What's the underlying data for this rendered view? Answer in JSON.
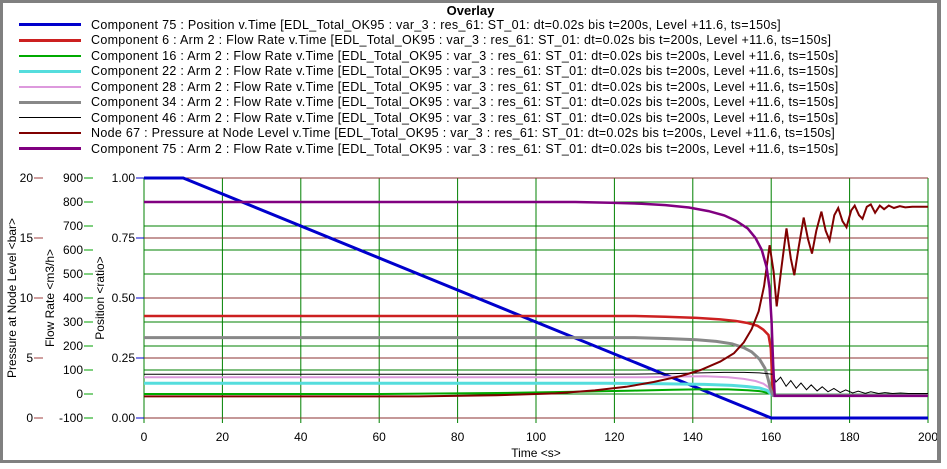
{
  "window": {
    "border_color": "#808080",
    "background": "#FFFFFF"
  },
  "legend": {
    "items": [
      {
        "label": "Component 75 : Position v.Time [EDL_Total_OK95 : var_3 : res_61: ST_01: dt=0.02s bis t=200s, Level +11.6, ts=150s]"
      },
      {
        "label": "Component 6 : Arm 2 : Flow Rate v.Time [EDL_Total_OK95 : var_3 : res_61: ST_01: dt=0.02s bis t=200s, Level +11.6, ts=150s]"
      },
      {
        "label": "Component 16 : Arm 2 : Flow Rate v.Time [EDL_Total_OK95 : var_3 : res_61: ST_01: dt=0.02s bis t=200s, Level +11.6, ts=150s]"
      },
      {
        "label": "Component 22 : Arm 2 : Flow Rate v.Time [EDL_Total_OK95 : var_3 : res_61: ST_01: dt=0.02s bis t=200s, Level +11.6, ts=150s]"
      },
      {
        "label": "Component 28 : Arm 2 : Flow Rate v.Time [EDL_Total_OK95 : var_3 : res_61: ST_01: dt=0.02s bis t=200s, Level +11.6, ts=150s]"
      },
      {
        "label": "Component 34 : Arm 2 : Flow Rate v.Time [EDL_Total_OK95 : var_3 : res_61: ST_01: dt=0.02s bis t=200s, Level +11.6, ts=150s]"
      },
      {
        "label": "Component 46 : Arm 2 : Flow Rate v.Time [EDL_Total_OK95 : var_3 : res_61: ST_01: dt=0.02s bis t=200s, Level +11.6, ts=150s]"
      },
      {
        "label": "Node 67 : Pressure at Node Level v.Time [EDL_Total_OK95 : var_3 : res_61: ST_01: dt=0.02s bis t=200s, Level +11.6, ts=150s]"
      },
      {
        "label": "Component 75 : Arm 2 : Flow Rate v.Time [EDL_Total_OK95 : var_3 : res_61: ST_01: dt=0.02s bis t=200s, Level +11.6, ts=150s]"
      }
    ]
  },
  "chart_data": {
    "type": "line",
    "title": "Overlay",
    "grid": {
      "vertical_color": "#008000",
      "flow_line_color": "#008000",
      "pressure_line_color": "#8B3232"
    },
    "x_axis": {
      "label": "Time <s>",
      "range": [
        0,
        200
      ],
      "tick_values": [
        0,
        20,
        40,
        60,
        80,
        100,
        120,
        140,
        160,
        180,
        200
      ],
      "tick_labels": [
        "0",
        "20",
        "40",
        "60",
        "80",
        "100",
        "120",
        "140",
        "160",
        "180",
        "200"
      ]
    },
    "y_axes": [
      {
        "id": "pressure",
        "label": "Pressure at Node Level <bar>",
        "range": [
          0,
          20
        ],
        "tick_values": [
          20,
          15,
          10,
          5,
          0
        ],
        "tick_labels": [
          "20",
          "15",
          "10",
          "5",
          "0"
        ],
        "tick_color": "#A04040"
      },
      {
        "id": "flow",
        "label": "Flow Rate <m3/h>",
        "range": [
          -100,
          900
        ],
        "tick_values": [
          900,
          800,
          700,
          600,
          500,
          400,
          300,
          200,
          100,
          0,
          -100
        ],
        "tick_labels": [
          "900",
          "800",
          "700",
          "600",
          "500",
          "400",
          "300",
          "200",
          "100",
          "0",
          "-100"
        ],
        "tick_color": "#00A000"
      },
      {
        "id": "position",
        "label": "Position <ratio>",
        "range": [
          0,
          1
        ],
        "tick_values": [
          1,
          0.75,
          0.5,
          0.25,
          0
        ],
        "tick_labels": [
          "1.00",
          "0.75",
          "0.50",
          "0.25",
          "0.00"
        ],
        "tick_color": "#0000CC"
      }
    ],
    "series": [
      {
        "name": "Component 75 : Position",
        "axis": "position",
        "color": "#0000CC",
        "width": 3,
        "points": [
          [
            0,
            1.0
          ],
          [
            10,
            1.0
          ],
          [
            160,
            0.0
          ],
          [
            200,
            0.0
          ]
        ]
      },
      {
        "name": "Component 6 : Arm 2 : Flow Rate",
        "axis": "flow",
        "color": "#CC2020",
        "width": 2.5,
        "points": [
          [
            0,
            325
          ],
          [
            125,
            325
          ],
          [
            133,
            322
          ],
          [
            141,
            317
          ],
          [
            147,
            311
          ],
          [
            151,
            304
          ],
          [
            154,
            296
          ],
          [
            156.5,
            284
          ],
          [
            158,
            268
          ],
          [
            159.3,
            246
          ],
          [
            159.9,
            190
          ],
          [
            160.3,
            40
          ],
          [
            160.6,
            -5
          ],
          [
            200,
            -5
          ]
        ]
      },
      {
        "name": "Component 16 : Arm 2 : Flow Rate",
        "axis": "flow",
        "color": "#00AA00",
        "width": 2,
        "points": [
          [
            0,
            0
          ],
          [
            60,
            0
          ],
          [
            90,
            4
          ],
          [
            110,
            9
          ],
          [
            125,
            14
          ],
          [
            135,
            18
          ],
          [
            143,
            20
          ],
          [
            149,
            19
          ],
          [
            154,
            16
          ],
          [
            157,
            12
          ],
          [
            159,
            6
          ],
          [
            160.4,
            -3
          ],
          [
            200,
            -3
          ]
        ]
      },
      {
        "name": "Component 22 : Arm 2 : Flow Rate",
        "axis": "flow",
        "color": "#55DDDD",
        "width": 3,
        "points": [
          [
            0,
            45
          ],
          [
            118,
            45
          ],
          [
            132,
            43
          ],
          [
            143,
            40
          ],
          [
            150,
            36
          ],
          [
            154,
            31
          ],
          [
            157,
            25
          ],
          [
            159,
            15
          ],
          [
            160.3,
            -6
          ],
          [
            200,
            -6
          ]
        ]
      },
      {
        "name": "Component 28 : Arm 2 : Flow Rate",
        "axis": "flow",
        "color": "#DD99DD",
        "width": 2,
        "points": [
          [
            0,
            70
          ],
          [
            128,
            70
          ],
          [
            137,
            73
          ],
          [
            143,
            74
          ],
          [
            149,
            70
          ],
          [
            153,
            63
          ],
          [
            156,
            54
          ],
          [
            158,
            43
          ],
          [
            159.3,
            28
          ],
          [
            160.4,
            -4
          ],
          [
            200,
            -4
          ]
        ]
      },
      {
        "name": "Component 34 : Arm 2 : Flow Rate",
        "axis": "flow",
        "color": "#888888",
        "width": 3,
        "points": [
          [
            0,
            235
          ],
          [
            125,
            235
          ],
          [
            134,
            231
          ],
          [
            141,
            226
          ],
          [
            146,
            219
          ],
          [
            150,
            209
          ],
          [
            153,
            193
          ],
          [
            155,
            176
          ],
          [
            157,
            146
          ],
          [
            158.4,
            108
          ],
          [
            159.2,
            62
          ],
          [
            159.8,
            22
          ],
          [
            160.4,
            -5
          ],
          [
            200,
            -5
          ]
        ]
      },
      {
        "name": "Component 46 : Arm 2 : Flow Rate",
        "axis": "flow",
        "color": "#000000",
        "width": 1,
        "points": [
          [
            0,
            82
          ],
          [
            110,
            82
          ],
          [
            125,
            83
          ],
          [
            135,
            85
          ],
          [
            142,
            88
          ],
          [
            148,
            90
          ],
          [
            153,
            90
          ],
          [
            157,
            88
          ],
          [
            159,
            85
          ],
          [
            160.4,
            82
          ],
          [
            161.2,
            50
          ],
          [
            162.4,
            70
          ],
          [
            163.8,
            32
          ],
          [
            165,
            56
          ],
          [
            166.4,
            24
          ],
          [
            167.6,
            46
          ],
          [
            169,
            18
          ],
          [
            170.2,
            38
          ],
          [
            171.7,
            13
          ],
          [
            173,
            30
          ],
          [
            174.5,
            9
          ],
          [
            176,
            23
          ],
          [
            177.6,
            6
          ],
          [
            179,
            17
          ],
          [
            180.8,
            4
          ],
          [
            182.2,
            12
          ],
          [
            184,
            3
          ],
          [
            185.4,
            9
          ],
          [
            187.4,
            2
          ],
          [
            189,
            6
          ],
          [
            191,
            2
          ],
          [
            193,
            4
          ],
          [
            195,
            2
          ],
          [
            200,
            2
          ]
        ]
      },
      {
        "name": "Node 67 : Pressure at Node Level",
        "axis": "pressure",
        "color": "#800000",
        "width": 2,
        "points": [
          [
            0,
            1.8
          ],
          [
            70,
            1.8
          ],
          [
            90,
            1.9
          ],
          [
            105,
            2.05
          ],
          [
            115,
            2.3
          ],
          [
            123,
            2.6
          ],
          [
            130,
            3.0
          ],
          [
            137,
            3.5
          ],
          [
            142,
            4.0
          ],
          [
            147,
            4.7
          ],
          [
            150.5,
            5.4
          ],
          [
            153,
            6.3
          ],
          [
            155,
            7.4
          ],
          [
            156.8,
            8.9
          ],
          [
            158.2,
            11.0
          ],
          [
            159.6,
            14.4
          ],
          [
            160.6,
            12.2
          ],
          [
            161.4,
            9.3
          ],
          [
            162.6,
            12.5
          ],
          [
            163.9,
            15.8
          ],
          [
            165,
            13.3
          ],
          [
            165.9,
            11.9
          ],
          [
            167,
            14.2
          ],
          [
            168.3,
            16.7
          ],
          [
            169.4,
            14.9
          ],
          [
            170.4,
            13.7
          ],
          [
            171.5,
            15.6
          ],
          [
            172.8,
            17.2
          ],
          [
            173.9,
            15.6
          ],
          [
            174.9,
            14.8
          ],
          [
            176.1,
            16.9
          ],
          [
            177.1,
            17.5
          ],
          [
            178.2,
            16.4
          ],
          [
            179.2,
            15.9
          ],
          [
            180.4,
            17.3
          ],
          [
            181.3,
            17.7
          ],
          [
            182.4,
            16.9
          ],
          [
            183.3,
            16.6
          ],
          [
            184.4,
            17.6
          ],
          [
            185.4,
            17.8
          ],
          [
            186.5,
            17.1
          ],
          [
            187.7,
            17.7
          ],
          [
            188.8,
            17.4
          ],
          [
            190,
            17.7
          ],
          [
            191.3,
            17.5
          ],
          [
            192.8,
            17.65
          ],
          [
            194.2,
            17.55
          ],
          [
            196,
            17.6
          ],
          [
            200,
            17.6
          ]
        ]
      },
      {
        "name": "Component 75 : Arm 2 : Flow Rate",
        "axis": "flow",
        "color": "#800080",
        "width": 2.5,
        "points": [
          [
            0,
            800
          ],
          [
            110,
            800
          ],
          [
            119,
            797
          ],
          [
            127,
            793
          ],
          [
            133,
            787
          ],
          [
            139,
            777
          ],
          [
            144,
            762
          ],
          [
            148,
            744
          ],
          [
            151,
            722
          ],
          [
            154,
            690
          ],
          [
            156,
            650
          ],
          [
            157.6,
            600
          ],
          [
            158.8,
            530
          ],
          [
            159.6,
            440
          ],
          [
            160.1,
            300
          ],
          [
            160.5,
            120
          ],
          [
            160.9,
            -8
          ],
          [
            200,
            -8
          ]
        ]
      }
    ]
  }
}
